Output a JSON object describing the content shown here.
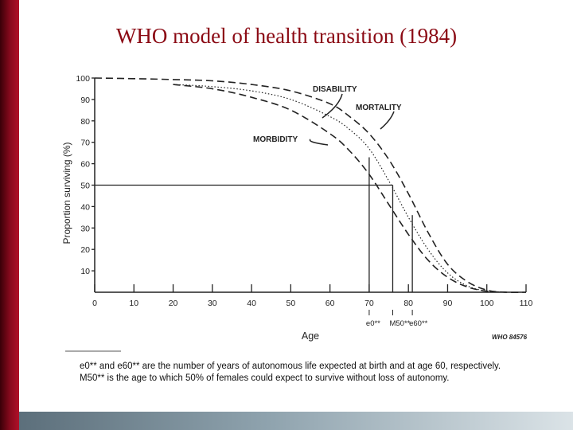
{
  "slide": {
    "title": "WHO model of health transition (1984)",
    "accent_color": "#8b0a14"
  },
  "chart_data": {
    "type": "line",
    "xlabel": "Age",
    "ylabel": "Proportion surviving (%)",
    "xlim": [
      0,
      110
    ],
    "ylim": [
      0,
      100
    ],
    "x_ticks": [
      0,
      10,
      20,
      30,
      40,
      50,
      60,
      70,
      80,
      90,
      100,
      110
    ],
    "y_ticks": [
      10,
      20,
      30,
      40,
      50,
      60,
      70,
      80,
      90,
      100
    ],
    "grid": false,
    "series": [
      {
        "name": "MORTALITY",
        "style": "dashed",
        "points": [
          [
            0,
            100
          ],
          [
            10,
            99.7
          ],
          [
            20,
            99.3
          ],
          [
            30,
            98.7
          ],
          [
            40,
            97
          ],
          [
            50,
            94
          ],
          [
            60,
            88
          ],
          [
            65,
            82
          ],
          [
            70,
            74
          ],
          [
            75,
            62
          ],
          [
            80,
            46
          ],
          [
            85,
            28
          ],
          [
            90,
            13
          ],
          [
            95,
            5
          ],
          [
            100,
            1
          ],
          [
            105,
            0
          ],
          [
            110,
            0
          ]
        ]
      },
      {
        "name": "DISABILITY",
        "style": "dotted",
        "points": [
          [
            20,
            97
          ],
          [
            30,
            96
          ],
          [
            40,
            94
          ],
          [
            50,
            90
          ],
          [
            60,
            82
          ],
          [
            65,
            76
          ],
          [
            70,
            67
          ],
          [
            75,
            52
          ],
          [
            80,
            35
          ],
          [
            85,
            20
          ],
          [
            90,
            9
          ],
          [
            95,
            3
          ],
          [
            100,
            0.5
          ],
          [
            105,
            0
          ]
        ]
      },
      {
        "name": "MORBIDITY",
        "style": "dashed",
        "points": [
          [
            20,
            97
          ],
          [
            30,
            95
          ],
          [
            40,
            91
          ],
          [
            50,
            85
          ],
          [
            60,
            74
          ],
          [
            65,
            66
          ],
          [
            70,
            55
          ],
          [
            75,
            41
          ],
          [
            80,
            27
          ],
          [
            85,
            15
          ],
          [
            90,
            7
          ],
          [
            95,
            2.5
          ],
          [
            100,
            0.5
          ],
          [
            105,
            0
          ]
        ]
      }
    ],
    "markers": [
      {
        "label": "e0**",
        "x": 70,
        "y_top": 63
      },
      {
        "label": "M50**",
        "x": 76,
        "y_top": 50
      },
      {
        "label": "e60**",
        "x": 81,
        "y_top": 36
      }
    ],
    "reference_line": {
      "y": 50,
      "x_end": 76
    },
    "annotations": [
      "DISABILITY",
      "MORTALITY",
      "MORBIDITY"
    ],
    "source_label": "WHO 84576"
  },
  "notes": {
    "line1": "e0** and e60** are the number of years of autonomous life expected at birth and at age 60, respectively.",
    "line2": "M50** is the age to which 50% of females could expect to survive without loss of autonomy."
  }
}
